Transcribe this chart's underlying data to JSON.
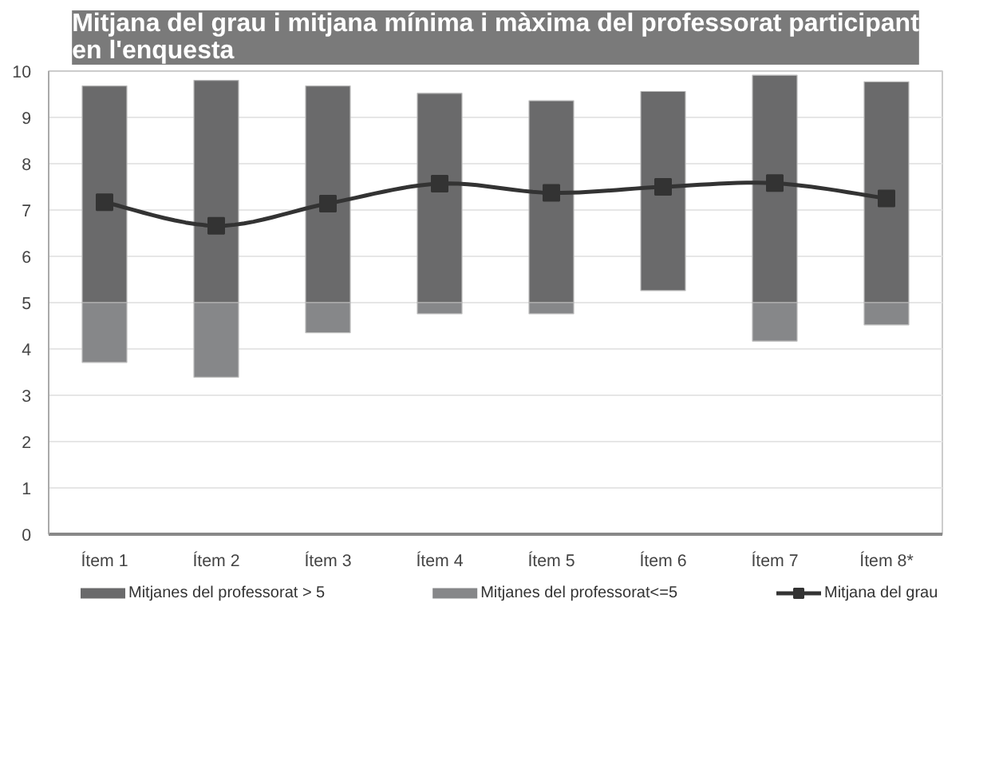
{
  "chart_data": {
    "type": "bar",
    "title": "Mitjana del grau i mitjana mínima i màxima del professorat participant en l'enquesta",
    "categories": [
      "Ítem 1",
      "Ítem 2",
      "Ítem 3",
      "Ítem 4",
      "Ítem 5",
      "Ítem 6",
      "Ítem 7",
      "Ítem 8*"
    ],
    "series": [
      {
        "name": "Mitjanes del professorat > 5",
        "color": "#6a6a6b",
        "base": [
          5,
          5,
          5,
          5,
          5,
          5.26,
          5,
          5
        ],
        "values": [
          4.68,
          4.8,
          4.68,
          4.52,
          4.36,
          4.3,
          4.91,
          4.77
        ]
      },
      {
        "name": "Mitjanes del professorat<=5",
        "color": "#868789",
        "base": [
          3.71,
          3.39,
          4.35,
          4.76,
          4.76,
          null,
          4.17,
          4.52
        ],
        "values": [
          1.29,
          1.61,
          0.65,
          0.24,
          0.24,
          null,
          0.83,
          0.48
        ]
      },
      {
        "name": "Mitjana del grau",
        "type": "line",
        "color": "#333333",
        "marker": "square",
        "values": [
          7.17,
          6.66,
          7.14,
          7.57,
          7.37,
          7.5,
          7.58,
          7.25
        ]
      }
    ],
    "ylim": [
      0,
      10
    ],
    "yticks": [
      0,
      1,
      2,
      3,
      4,
      5,
      6,
      7,
      8,
      9,
      10
    ],
    "grid": "y",
    "legend": "bottom"
  }
}
